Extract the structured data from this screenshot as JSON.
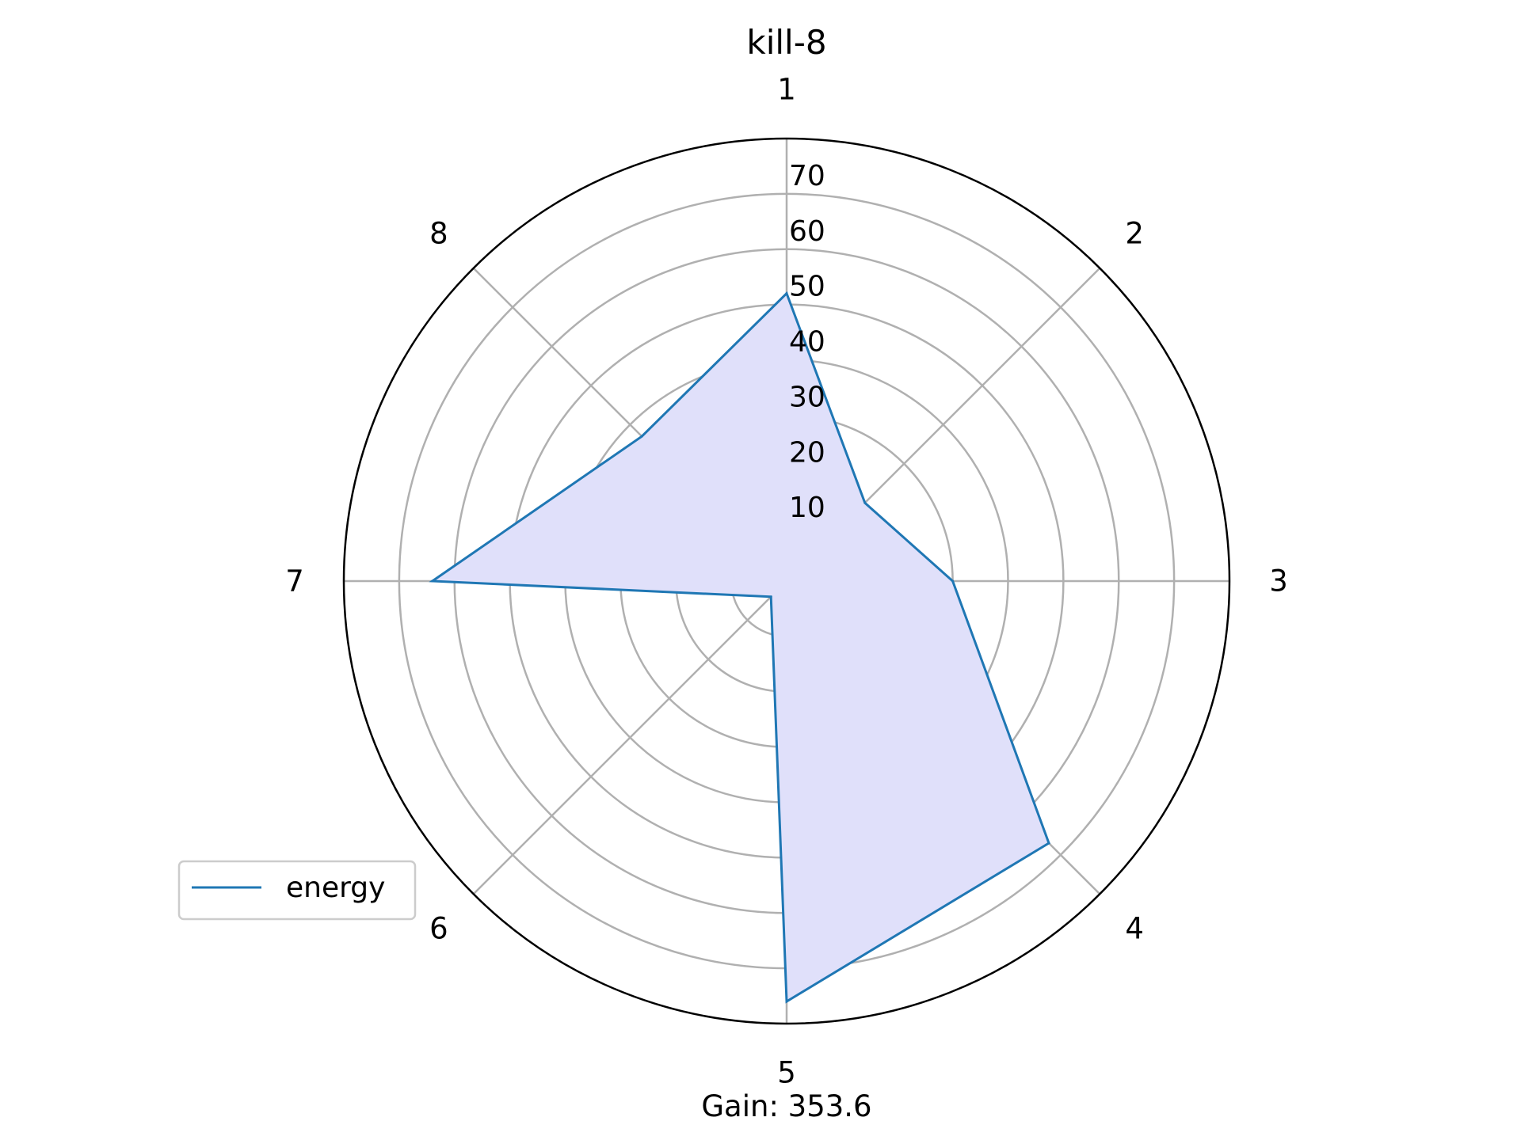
{
  "chart_data": {
    "type": "radar",
    "title": "kill-8",
    "categories": [
      "1",
      "2",
      "3",
      "4",
      "5",
      "6",
      "7",
      "8"
    ],
    "series": [
      {
        "name": "energy",
        "values": [
          52,
          20,
          30,
          67,
          76,
          4,
          64,
          37
        ]
      }
    ],
    "rlim": [
      0,
      80
    ],
    "r_ticks": [
      "10",
      "20",
      "30",
      "40",
      "50",
      "60",
      "70"
    ],
    "r_tick_values": [
      10,
      20,
      30,
      40,
      50,
      60,
      70
    ],
    "grid": true,
    "legend_position": "lower-left",
    "annotation": "Gain: 353.6",
    "colors": {
      "line": "#1f77b4",
      "fill": "#e0e0fa",
      "grid": "#b0b0b0"
    }
  }
}
